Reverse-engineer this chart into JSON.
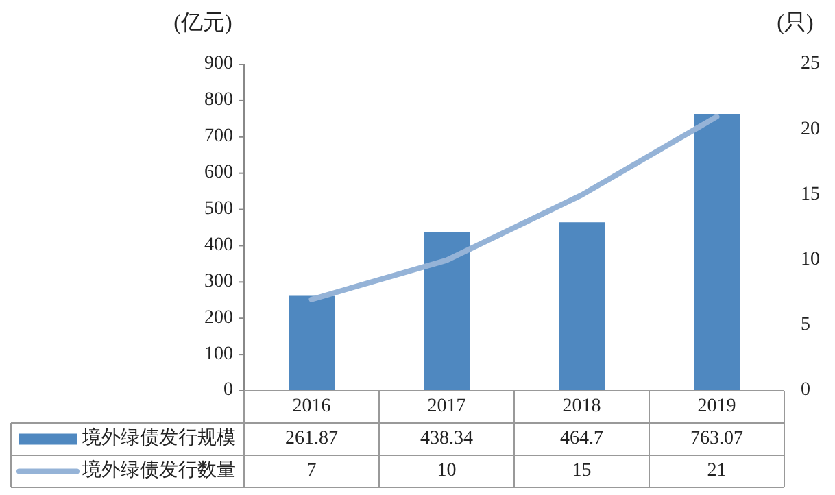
{
  "chart_data": {
    "type": "bar",
    "categories": [
      "2016",
      "2017",
      "2018",
      "2019"
    ],
    "ylabel": "(亿元)",
    "y2label": "(只)",
    "ylim": [
      0,
      900
    ],
    "yticks": [
      0,
      100,
      200,
      300,
      400,
      500,
      600,
      700,
      800,
      900
    ],
    "y2lim": [
      0,
      25
    ],
    "y2ticks": [
      0,
      5,
      10,
      15,
      20,
      25
    ],
    "data_labels": true,
    "legend": "bottom left",
    "series": [
      {
        "name": "境外绿债发行规模",
        "color": "#4f88c0",
        "values": [
          261.87,
          438.34,
          464.7,
          763.07
        ]
      },
      {
        "name": "境外绿债发行数量",
        "type": "line",
        "axis": "y2",
        "color": "#95b3d7",
        "values": [
          7,
          10,
          15,
          21
        ]
      }
    ]
  }
}
